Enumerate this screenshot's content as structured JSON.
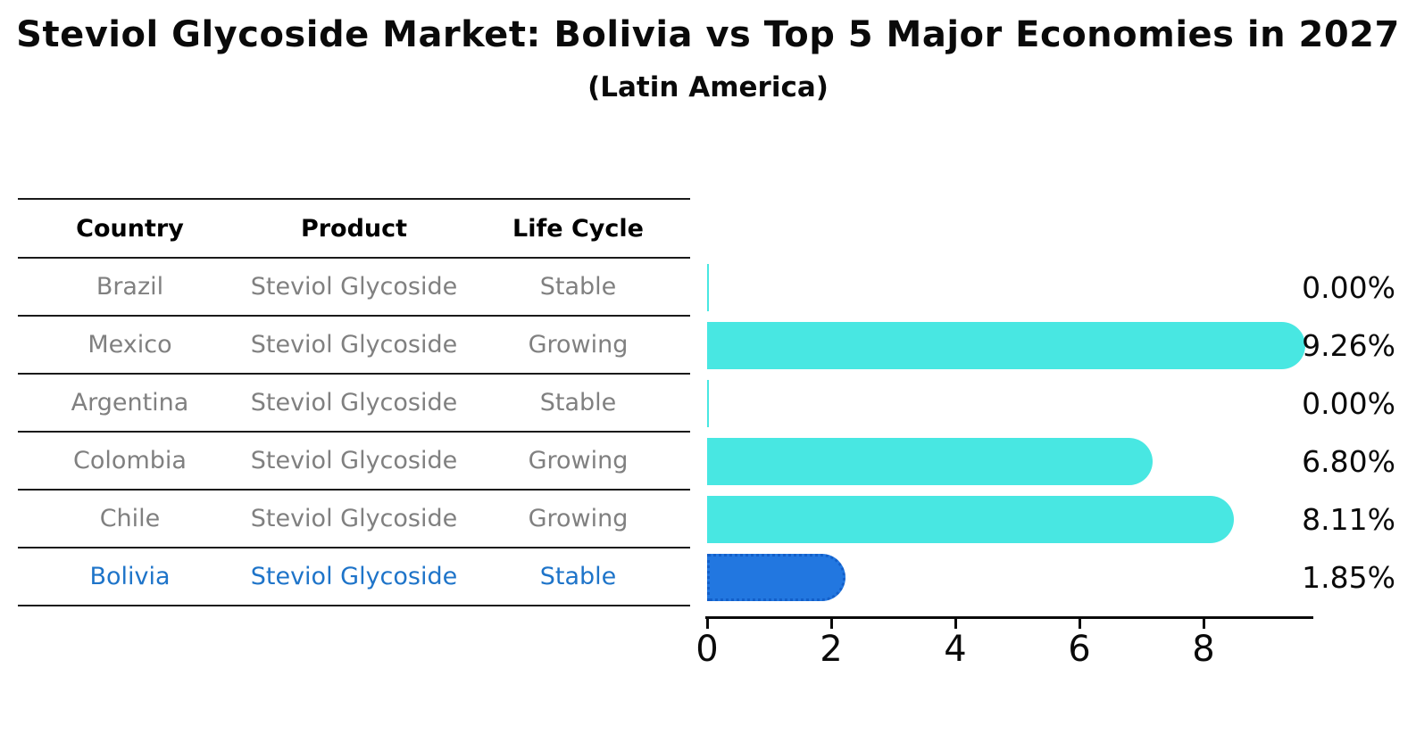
{
  "title": "Steviol Glycoside Market: Bolivia vs Top 5 Major Economies in 2027",
  "subtitle": "(Latin America)",
  "table": {
    "headers": [
      "Country",
      "Product",
      "Life Cycle"
    ]
  },
  "rows": [
    {
      "country": "Brazil",
      "product": "Steviol Glycoside",
      "life_cycle": "Stable",
      "value": 0.0,
      "label": "0.00%"
    },
    {
      "country": "Mexico",
      "product": "Steviol Glycoside",
      "life_cycle": "Growing",
      "value": 9.26,
      "label": "9.26%"
    },
    {
      "country": "Argentina",
      "product": "Steviol Glycoside",
      "life_cycle": "Stable",
      "value": 0.0,
      "label": "0.00%"
    },
    {
      "country": "Colombia",
      "product": "Steviol Glycoside",
      "life_cycle": "Growing",
      "value": 6.8,
      "label": "6.80%"
    },
    {
      "country": "Chile",
      "product": "Steviol Glycoside",
      "life_cycle": "Growing",
      "value": 8.11,
      "label": "8.11%"
    },
    {
      "country": "Bolivia",
      "product": "Steviol Glycoside",
      "life_cycle": "Stable",
      "value": 1.85,
      "label": "1.85%"
    }
  ],
  "chart_data": {
    "type": "bar",
    "orientation": "horizontal",
    "title": "Steviol Glycoside Market: Bolivia vs Top 5 Major Economies in 2027",
    "subtitle": "(Latin America)",
    "categories": [
      "Brazil",
      "Mexico",
      "Argentina",
      "Colombia",
      "Chile",
      "Bolivia"
    ],
    "values": [
      0.0,
      9.26,
      0.0,
      6.8,
      8.11,
      1.85
    ],
    "value_labels": [
      "0.00%",
      "9.26%",
      "0.00%",
      "6.80%",
      "8.11%",
      "1.85%"
    ],
    "xlabel": "",
    "ylabel": "",
    "xticks": [
      0,
      2,
      4,
      6,
      8
    ],
    "xlim": [
      0,
      9.74
    ],
    "grid": false,
    "legend": false,
    "highlight_index": 5,
    "bar_color": "#48e7e2",
    "highlight_bar_color": "#2277e0",
    "highlight_text_color": "#1e74c9",
    "row_text_color": "#808080"
  }
}
